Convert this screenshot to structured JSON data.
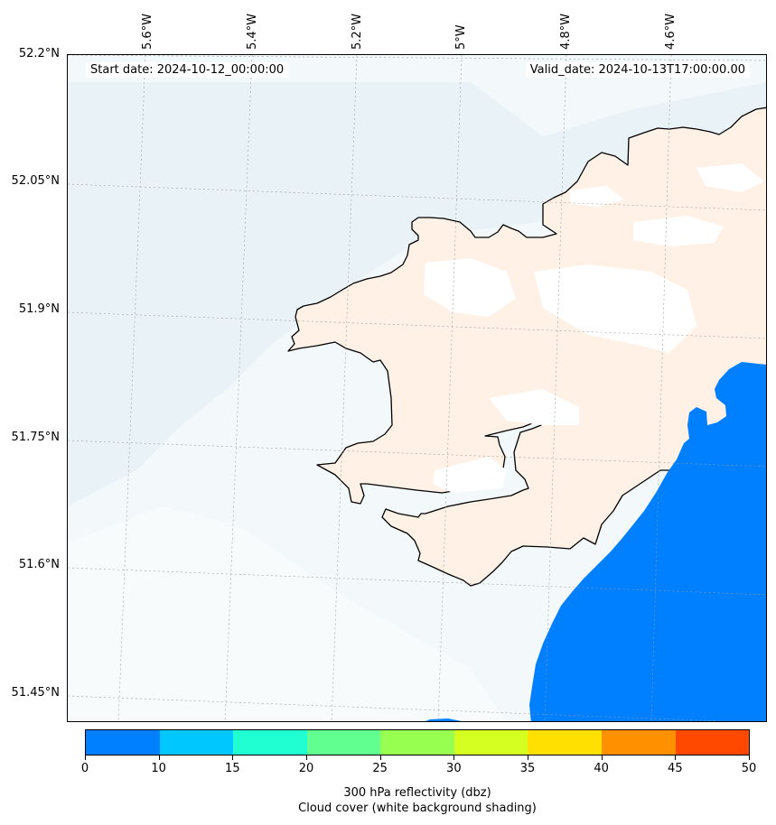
{
  "map": {
    "start_date": "Start date: 2024-10-12_00:00:00",
    "valid_date": "Valid_date: 2024-10-13T17:00:00.00",
    "lon_labels": [
      "5.6°W",
      "5.4°W",
      "5.2°W",
      "5°W",
      "4.8°W",
      "4.6°W"
    ],
    "lat_labels": [
      "52.2°N",
      "52.05°N",
      "51.9°N",
      "51.75°N",
      "51.6°N",
      "51.45°N"
    ],
    "land_color": "#fff1e6",
    "sea_cloud_color": "#eef6f9",
    "reflectivity_color": "#0080ff"
  },
  "colorbar": {
    "ticks": [
      "0",
      "10",
      "15",
      "20",
      "25",
      "30",
      "35",
      "40",
      "45",
      "50"
    ],
    "colors": [
      "#0080ff",
      "#00c8ff",
      "#20ffd2",
      "#60ff90",
      "#96ff50",
      "#d4ff20",
      "#ffe000",
      "#ff9000",
      "#ff4800"
    ],
    "title_line1": "300 hPa reflectivity (dbz)",
    "title_line2": "Cloud cover (white background shading)"
  }
}
